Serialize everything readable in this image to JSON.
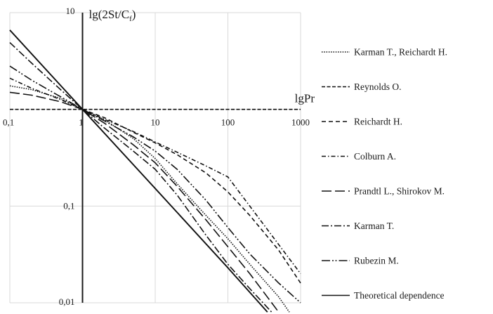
{
  "chart_data": {
    "type": "line",
    "x_axis": {
      "title": "lgPr",
      "scale": "log",
      "range": [
        0.1,
        1000
      ],
      "tick_labels": [
        "0,1",
        "1",
        "10",
        "100",
        "1000"
      ]
    },
    "y_axis": {
      "title": "lg(2St/C",
      "title_subscript": "f",
      "title_close": ")",
      "scale": "log",
      "range": [
        0.01,
        10
      ],
      "tick_labels": [
        "10",
        "1",
        "0,1",
        "0,01"
      ]
    },
    "grid": true,
    "legend_position": "right",
    "series": [
      {
        "name": "Karman T., Reichardt H.",
        "dash": "1.5,1.8",
        "points": [
          [
            0.1,
            1.75
          ],
          [
            0.2,
            1.6
          ],
          [
            0.5,
            1.3
          ],
          [
            1,
            1.0
          ],
          [
            2,
            0.78
          ],
          [
            5,
            0.5
          ],
          [
            10,
            0.31
          ],
          [
            20,
            0.17
          ],
          [
            50,
            0.08
          ],
          [
            100,
            0.046
          ],
          [
            200,
            0.025
          ],
          [
            500,
            0.0115
          ],
          [
            700,
            0.008
          ]
        ]
      },
      {
        "name": "Reynolds O.",
        "dash": "5,2.5",
        "points": [
          [
            0.1,
            1.0
          ],
          [
            1000,
            1.0
          ]
        ]
      },
      {
        "name": "Reichardt H.",
        "dash": "6,4",
        "points": [
          [
            1,
            1.0
          ],
          [
            2,
            0.82
          ],
          [
            5,
            0.58
          ],
          [
            10,
            0.45
          ],
          [
            20,
            0.34
          ],
          [
            50,
            0.22
          ],
          [
            100,
            0.14
          ],
          [
            200,
            0.08
          ],
          [
            500,
            0.035
          ],
          [
            1000,
            0.016
          ]
        ]
      },
      {
        "name": "Colburn A.",
        "dash": "6,3,1.5,3",
        "points": [
          [
            0.1,
            2.1
          ],
          [
            0.2,
            1.65
          ],
          [
            0.5,
            1.26
          ],
          [
            1,
            1.0
          ],
          [
            2,
            0.79
          ],
          [
            5,
            0.59
          ],
          [
            10,
            0.46
          ],
          [
            20,
            0.36
          ],
          [
            50,
            0.26
          ],
          [
            100,
            0.2
          ],
          [
            1000,
            0.02
          ]
        ]
      },
      {
        "name": "Prandtl L., Shirokov M.",
        "dash": "14,5",
        "points": [
          [
            0.1,
            1.5
          ],
          [
            0.2,
            1.4
          ],
          [
            0.5,
            1.2
          ],
          [
            1,
            1.0
          ],
          [
            2,
            0.72
          ],
          [
            5,
            0.43
          ],
          [
            10,
            0.28
          ],
          [
            20,
            0.16
          ],
          [
            50,
            0.072
          ],
          [
            100,
            0.038
          ],
          [
            200,
            0.02
          ],
          [
            500,
            0.008
          ]
        ]
      },
      {
        "name": "Karman T.",
        "dash": "10,3,2,3",
        "points": [
          [
            0.1,
            4.9
          ],
          [
            0.2,
            3.0
          ],
          [
            0.5,
            1.6
          ],
          [
            1,
            1.0
          ],
          [
            2,
            0.64
          ],
          [
            5,
            0.37
          ],
          [
            10,
            0.24
          ],
          [
            20,
            0.13
          ],
          [
            50,
            0.05
          ],
          [
            100,
            0.025
          ],
          [
            200,
            0.014
          ],
          [
            400,
            0.008
          ]
        ]
      },
      {
        "name": "Rubezin M.",
        "dash": "12,3,2,2.5,2,3",
        "points": [
          [
            0.1,
            2.8
          ],
          [
            0.2,
            2.0
          ],
          [
            0.5,
            1.35
          ],
          [
            1,
            1.0
          ],
          [
            2,
            0.76
          ],
          [
            5,
            0.52
          ],
          [
            10,
            0.37
          ],
          [
            20,
            0.24
          ],
          [
            50,
            0.115
          ],
          [
            100,
            0.06
          ],
          [
            200,
            0.032
          ],
          [
            500,
            0.016
          ],
          [
            1000,
            0.01
          ]
        ]
      },
      {
        "name": "Theoretical dependence",
        "dash": "",
        "points": [
          [
            0.1,
            6.6
          ],
          [
            1,
            1.0
          ],
          [
            10,
            0.152
          ],
          [
            100,
            0.023
          ],
          [
            350,
            0.008
          ]
        ]
      }
    ]
  }
}
